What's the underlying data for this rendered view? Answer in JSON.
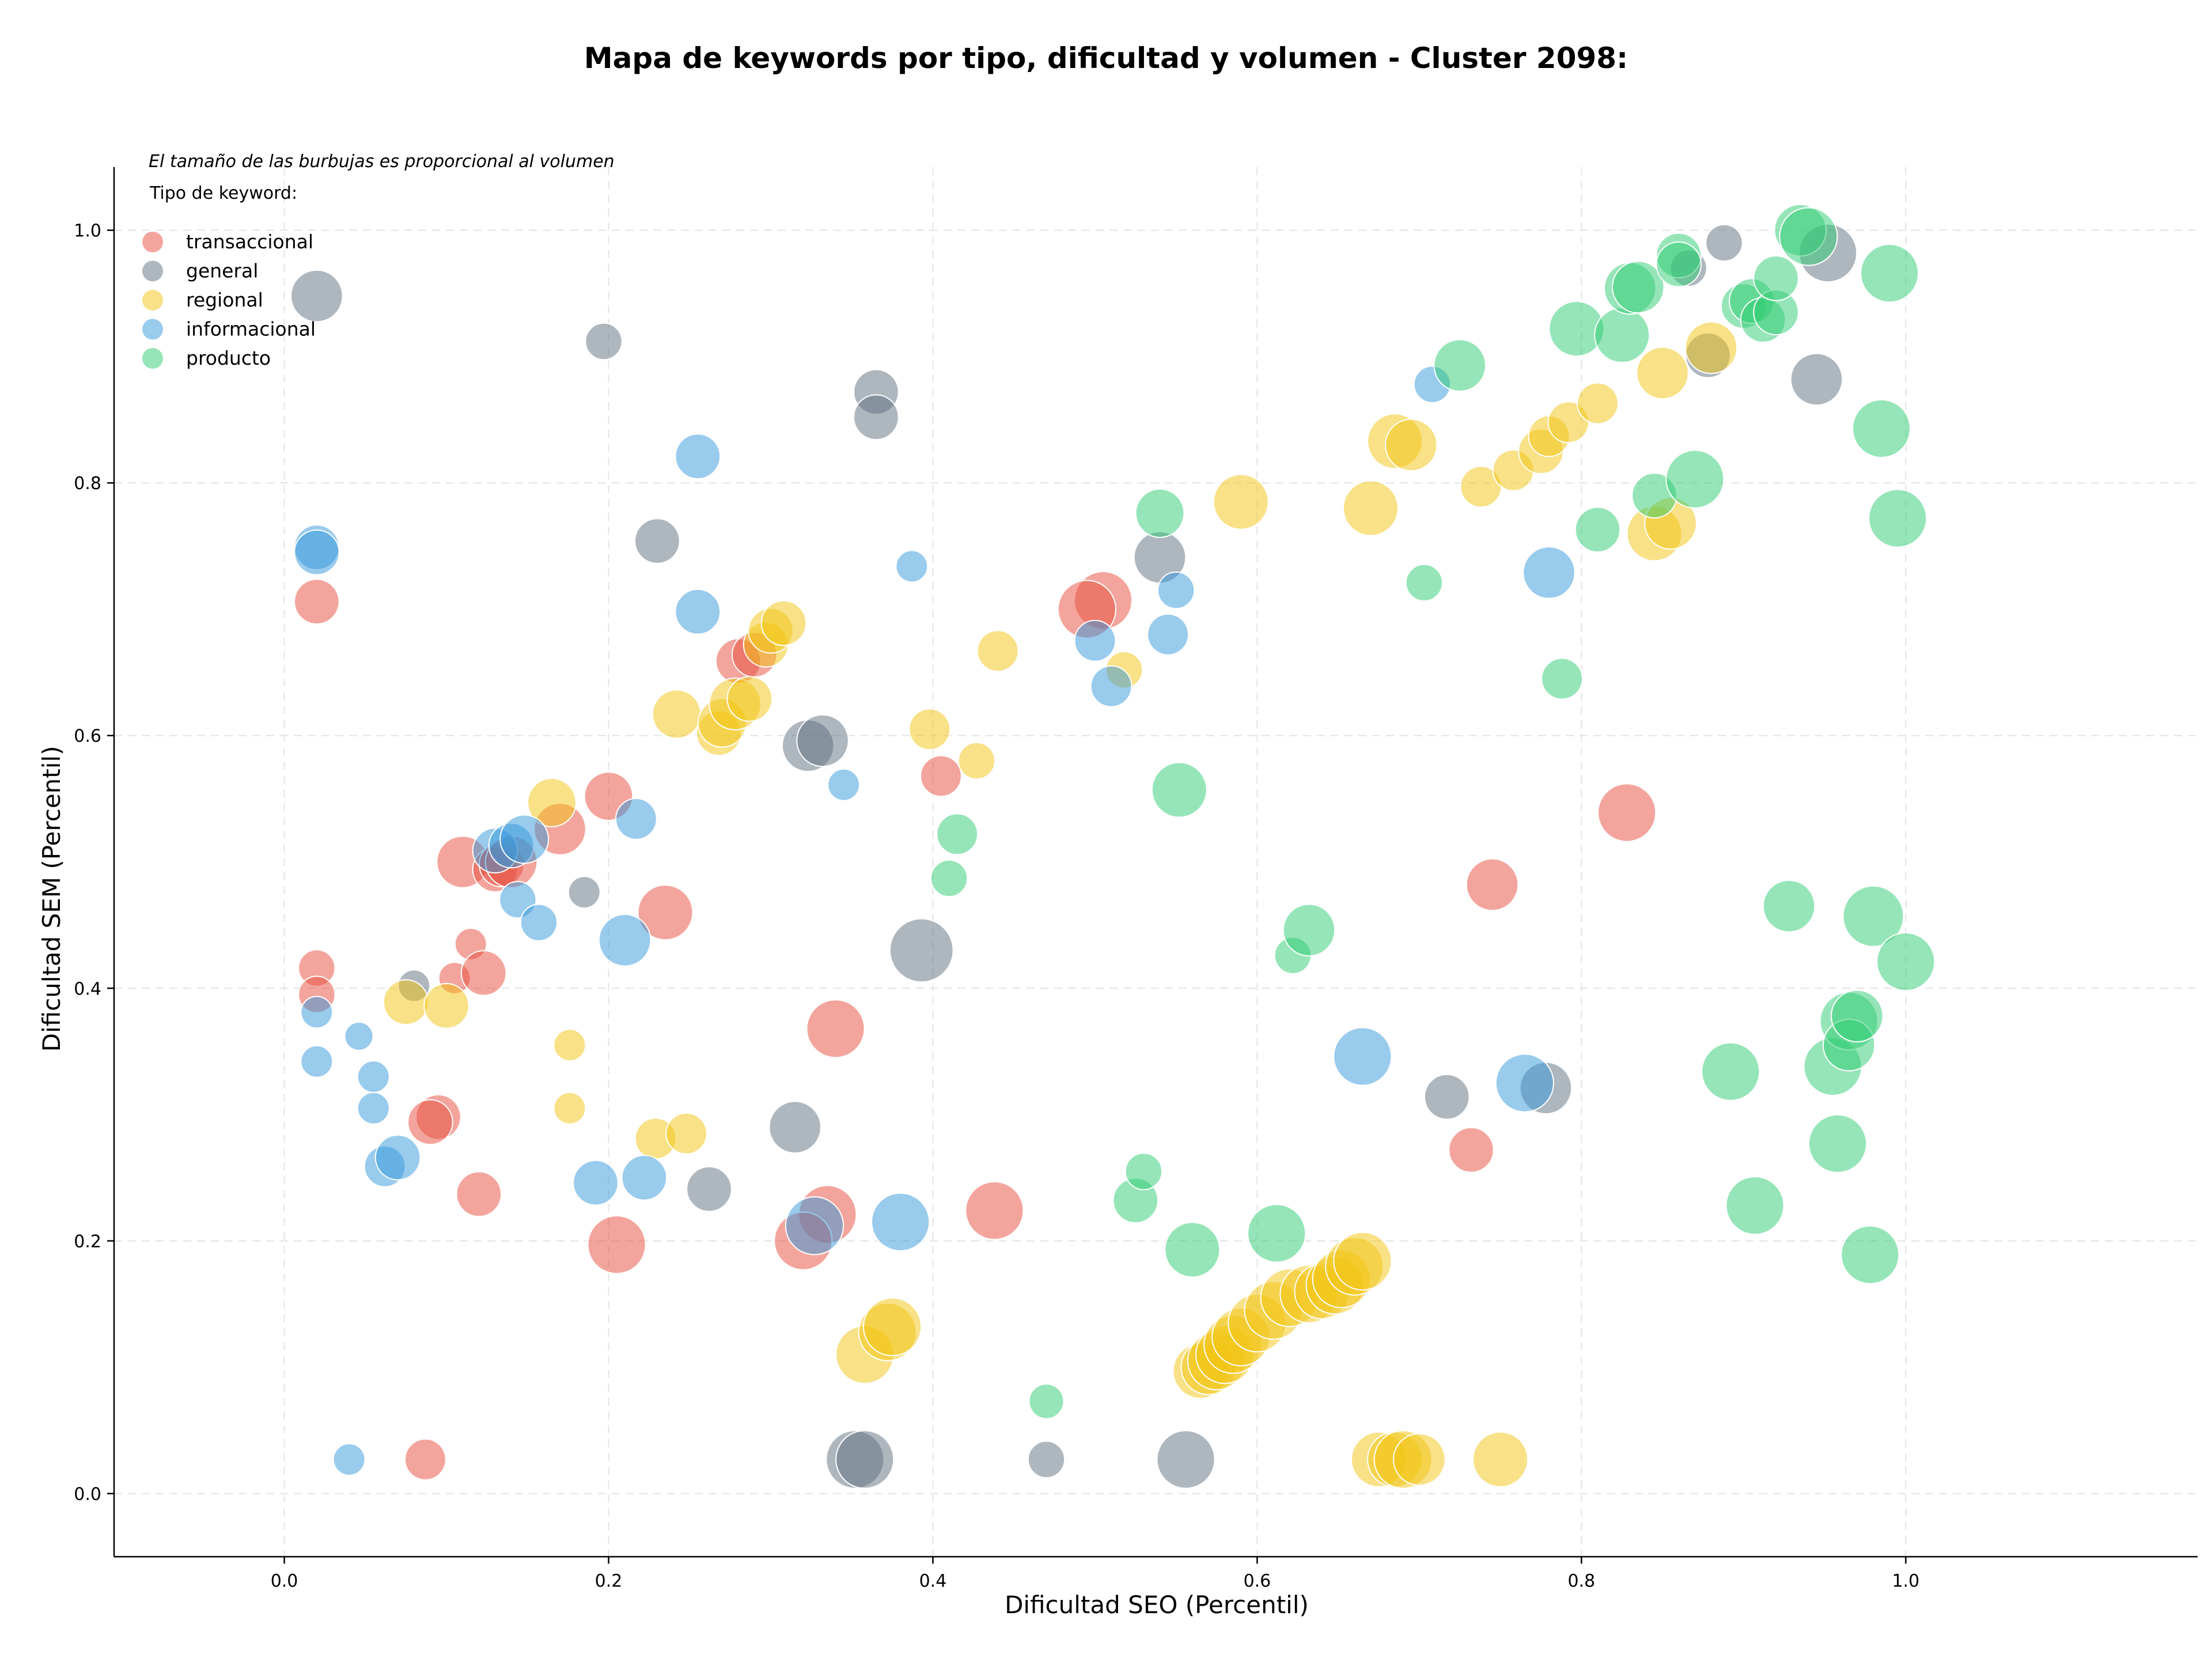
{
  "chart_data": {
    "type": "scatter",
    "title": "Mapa de keywords por tipo, dificultad y volumen - Cluster 2098:",
    "xlabel": "Dificultad SEO (Percentil)",
    "ylabel": "Dificultad SEM (Percentil)",
    "xlim": [
      -0.105,
      1.18
    ],
    "ylim": [
      -0.05,
      1.05
    ],
    "x_ticks": [
      "0.0",
      "0.2",
      "0.4",
      "0.6",
      "0.8",
      "1.0"
    ],
    "y_ticks": [
      "0.0",
      "0.2",
      "0.4",
      "0.6",
      "0.8",
      "1.0"
    ],
    "grid": true,
    "note": "El tamaño de las burbujas es proporcional al volumen",
    "legend_title": "Tipo de keyword:",
    "legend_position": "top-left",
    "series": [
      {
        "name": "transaccional",
        "color": "#e74c3c",
        "points": [
          [
            0.02,
            0.416,
            2
          ],
          [
            0.02,
            0.395,
            2
          ],
          [
            0.02,
            0.706,
            3
          ],
          [
            0.087,
            0.027,
            2.5
          ],
          [
            0.095,
            0.298,
            3
          ],
          [
            0.09,
            0.294,
            3
          ],
          [
            0.105,
            0.408,
            1.5
          ],
          [
            0.11,
            0.5,
            4
          ],
          [
            0.115,
            0.435,
            1.5
          ],
          [
            0.123,
            0.412,
            3
          ],
          [
            0.13,
            0.494,
            3
          ],
          [
            0.134,
            0.498,
            3
          ],
          [
            0.14,
            0.5,
            4
          ],
          [
            0.12,
            0.237,
            3
          ],
          [
            0.17,
            0.526,
            4
          ],
          [
            0.2,
            0.552,
            3.5
          ],
          [
            0.205,
            0.197,
            5
          ],
          [
            0.235,
            0.46,
            4.5
          ],
          [
            0.28,
            0.659,
            3
          ],
          [
            0.29,
            0.664,
            3
          ],
          [
            0.34,
            0.368,
            5
          ],
          [
            0.335,
            0.221,
            5
          ],
          [
            0.32,
            0.2,
            5
          ],
          [
            0.405,
            0.568,
            2.5
          ],
          [
            0.438,
            0.224,
            5
          ],
          [
            0.505,
            0.707,
            5
          ],
          [
            0.495,
            0.7,
            5
          ],
          [
            0.745,
            0.482,
            4
          ],
          [
            0.732,
            0.272,
            3
          ],
          [
            0.828,
            0.539,
            5
          ]
        ]
      },
      {
        "name": "general",
        "color": "#5d6d7e",
        "points": [
          [
            0.02,
            0.948,
            4
          ],
          [
            0.08,
            0.402,
            1.5
          ],
          [
            0.185,
            0.476,
            1.5
          ],
          [
            0.197,
            0.912,
            2
          ],
          [
            0.23,
            0.754,
            3
          ],
          [
            0.262,
            0.241,
            3
          ],
          [
            0.315,
            0.29,
            4
          ],
          [
            0.323,
            0.592,
            4
          ],
          [
            0.332,
            0.596,
            4
          ],
          [
            0.352,
            0.027,
            5
          ],
          [
            0.358,
            0.027,
            5
          ],
          [
            0.365,
            0.872,
            3
          ],
          [
            0.365,
            0.852,
            3
          ],
          [
            0.393,
            0.43,
            6
          ],
          [
            0.54,
            0.741,
            4
          ],
          [
            0.556,
            0.027,
            5
          ],
          [
            0.47,
            0.027,
            2
          ],
          [
            0.717,
            0.314,
            3
          ],
          [
            0.778,
            0.321,
            4
          ],
          [
            0.878,
            0.901,
            3
          ],
          [
            0.888,
            0.99,
            2
          ],
          [
            0.866,
            0.97,
            2
          ],
          [
            0.945,
            0.882,
            4
          ],
          [
            0.952,
            0.982,
            5
          ]
        ]
      },
      {
        "name": "regional",
        "color": "#f1c40f",
        "points": [
          [
            0.075,
            0.389,
            3
          ],
          [
            0.1,
            0.386,
            3
          ],
          [
            0.165,
            0.547,
            3.5
          ],
          [
            0.176,
            0.355,
            1.5
          ],
          [
            0.176,
            0.305,
            1.5
          ],
          [
            0.229,
            0.281,
            2.5
          ],
          [
            0.248,
            0.285,
            2.5
          ],
          [
            0.242,
            0.617,
            3.5
          ],
          [
            0.268,
            0.602,
            3
          ],
          [
            0.27,
            0.61,
            3.5
          ],
          [
            0.278,
            0.625,
            4
          ],
          [
            0.287,
            0.629,
            3
          ],
          [
            0.297,
            0.672,
            3
          ],
          [
            0.3,
            0.683,
            3
          ],
          [
            0.308,
            0.689,
            3
          ],
          [
            0.358,
            0.11,
            5
          ],
          [
            0.372,
            0.128,
            5
          ],
          [
            0.375,
            0.132,
            5
          ],
          [
            0.398,
            0.605,
            2.5
          ],
          [
            0.427,
            0.58,
            2
          ],
          [
            0.44,
            0.667,
            2.5
          ],
          [
            0.518,
            0.652,
            2
          ],
          [
            0.59,
            0.785,
            4.5
          ],
          [
            0.565,
            0.097,
            4.5
          ],
          [
            0.57,
            0.1,
            4.5
          ],
          [
            0.575,
            0.105,
            5
          ],
          [
            0.58,
            0.11,
            5
          ],
          [
            0.585,
            0.118,
            5
          ],
          [
            0.59,
            0.124,
            5
          ],
          [
            0.6,
            0.135,
            5
          ],
          [
            0.61,
            0.145,
            5
          ],
          [
            0.62,
            0.155,
            5
          ],
          [
            0.632,
            0.158,
            5
          ],
          [
            0.64,
            0.16,
            4.5
          ],
          [
            0.648,
            0.165,
            5
          ],
          [
            0.652,
            0.17,
            5
          ],
          [
            0.66,
            0.18,
            5
          ],
          [
            0.665,
            0.184,
            5
          ],
          [
            0.67,
            0.78,
            4.5
          ],
          [
            0.685,
            0.833,
            4.5
          ],
          [
            0.695,
            0.83,
            4
          ],
          [
            0.675,
            0.027,
            4.5
          ],
          [
            0.685,
            0.027,
            4.5
          ],
          [
            0.69,
            0.027,
            5
          ],
          [
            0.7,
            0.027,
            4
          ],
          [
            0.75,
            0.027,
            4.5
          ],
          [
            0.738,
            0.797,
            2.5
          ],
          [
            0.758,
            0.81,
            2.5
          ],
          [
            0.775,
            0.825,
            3
          ],
          [
            0.78,
            0.837,
            2.5
          ],
          [
            0.792,
            0.848,
            2.5
          ],
          [
            0.81,
            0.863,
            2.5
          ],
          [
            0.85,
            0.887,
            4
          ],
          [
            0.845,
            0.76,
            4.5
          ],
          [
            0.855,
            0.768,
            4
          ],
          [
            0.88,
            0.907,
            4
          ]
        ]
      },
      {
        "name": "informacional",
        "color": "#3498db",
        "points": [
          [
            0.02,
            0.749,
            3
          ],
          [
            0.02,
            0.745,
            3
          ],
          [
            0.02,
            0.381,
            1.5
          ],
          [
            0.02,
            0.342,
            1.5
          ],
          [
            0.04,
            0.027,
            1.5
          ],
          [
            0.046,
            0.362,
            1.2
          ],
          [
            0.055,
            0.33,
            1.5
          ],
          [
            0.055,
            0.305,
            1.5
          ],
          [
            0.062,
            0.259,
            2.5
          ],
          [
            0.07,
            0.266,
            3
          ],
          [
            0.13,
            0.509,
            3
          ],
          [
            0.14,
            0.513,
            3
          ],
          [
            0.148,
            0.518,
            3.5
          ],
          [
            0.144,
            0.47,
            2
          ],
          [
            0.157,
            0.452,
            2
          ],
          [
            0.192,
            0.246,
            3
          ],
          [
            0.21,
            0.438,
            4
          ],
          [
            0.217,
            0.534,
            2.5
          ],
          [
            0.222,
            0.25,
            3
          ],
          [
            0.255,
            0.821,
            3
          ],
          [
            0.255,
            0.698,
            3
          ],
          [
            0.345,
            0.561,
            1.5
          ],
          [
            0.327,
            0.212,
            5
          ],
          [
            0.38,
            0.215,
            5
          ],
          [
            0.387,
            0.734,
            1.5
          ],
          [
            0.5,
            0.675,
            2.5
          ],
          [
            0.51,
            0.639,
            2.5
          ],
          [
            0.545,
            0.68,
            2.5
          ],
          [
            0.55,
            0.715,
            2
          ],
          [
            0.665,
            0.346,
            5
          ],
          [
            0.765,
            0.325,
            5
          ],
          [
            0.78,
            0.729,
            4
          ],
          [
            0.708,
            0.878,
            2
          ]
        ]
      },
      {
        "name": "producto",
        "color": "#2ecc71",
        "points": [
          [
            0.41,
            0.487,
            2
          ],
          [
            0.415,
            0.522,
            2.5
          ],
          [
            0.47,
            0.073,
            1.8
          ],
          [
            0.525,
            0.232,
            3
          ],
          [
            0.53,
            0.255,
            2
          ],
          [
            0.54,
            0.776,
            3.5
          ],
          [
            0.552,
            0.557,
            4.5
          ],
          [
            0.56,
            0.193,
            4.5
          ],
          [
            0.612,
            0.206,
            5
          ],
          [
            0.622,
            0.426,
            2
          ],
          [
            0.632,
            0.446,
            4
          ],
          [
            0.703,
            0.721,
            2
          ],
          [
            0.725,
            0.893,
            4
          ],
          [
            0.788,
            0.645,
            2.5
          ],
          [
            0.797,
            0.922,
            4.5
          ],
          [
            0.81,
            0.763,
            3
          ],
          [
            0.825,
            0.917,
            4.5
          ],
          [
            0.83,
            0.954,
            4
          ],
          [
            0.835,
            0.955,
            4
          ],
          [
            0.845,
            0.79,
            3
          ],
          [
            0.86,
            0.98,
            3
          ],
          [
            0.86,
            0.973,
            3
          ],
          [
            0.87,
            0.803,
            5
          ],
          [
            0.892,
            0.334,
            5
          ],
          [
            0.9,
            0.94,
            3
          ],
          [
            0.905,
            0.944,
            3
          ],
          [
            0.907,
            0.228,
            5
          ],
          [
            0.912,
            0.929,
            3
          ],
          [
            0.92,
            0.935,
            3
          ],
          [
            0.92,
            0.962,
            3
          ],
          [
            0.928,
            0.465,
            4
          ],
          [
            0.935,
            1.0,
            4
          ],
          [
            0.94,
            0.995,
            5
          ],
          [
            0.955,
            0.338,
            5
          ],
          [
            0.958,
            0.277,
            5
          ],
          [
            0.965,
            0.374,
            5
          ],
          [
            0.965,
            0.355,
            4
          ],
          [
            0.97,
            0.378,
            4
          ],
          [
            0.978,
            0.189,
            5
          ],
          [
            0.98,
            0.457,
            5.5
          ],
          [
            0.99,
            0.966,
            5
          ],
          [
            0.985,
            0.843,
            5
          ],
          [
            0.995,
            0.772,
            5
          ],
          [
            1.0,
            0.421,
            5
          ]
        ]
      }
    ]
  }
}
